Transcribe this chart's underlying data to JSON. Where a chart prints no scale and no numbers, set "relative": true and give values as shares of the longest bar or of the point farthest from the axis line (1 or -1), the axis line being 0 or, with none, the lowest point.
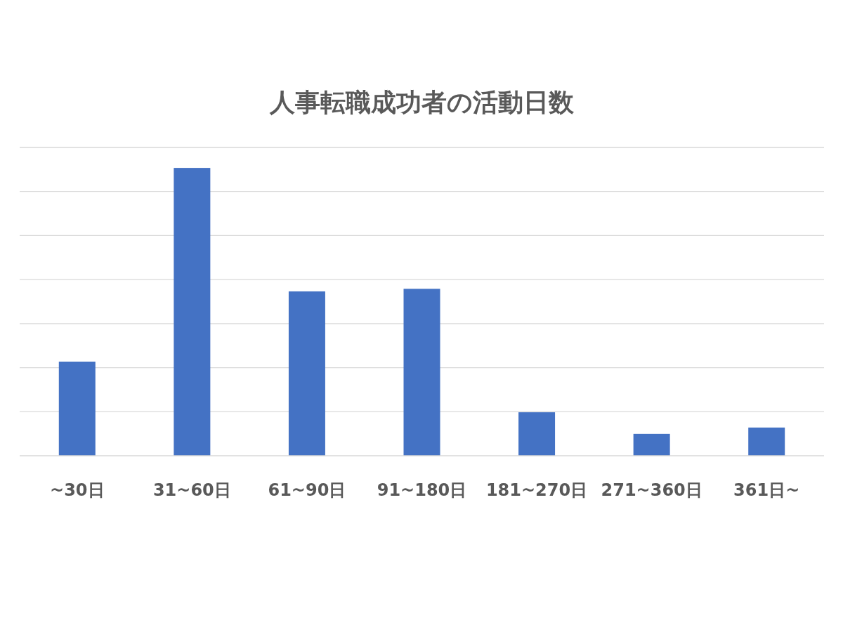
{
  "chart_data": {
    "type": "bar",
    "title": "人事転職成功者の活動日数",
    "categories": [
      "~30日",
      "31~60日",
      "61~90日",
      "91~180日",
      "181~270日",
      "271~360日",
      "361日~"
    ],
    "values": [
      0.327,
      1,
      0.571,
      0.58,
      0.151,
      0.076,
      0.098
    ],
    "color": "#4472c4",
    "relative": true,
    "grid": true
  }
}
